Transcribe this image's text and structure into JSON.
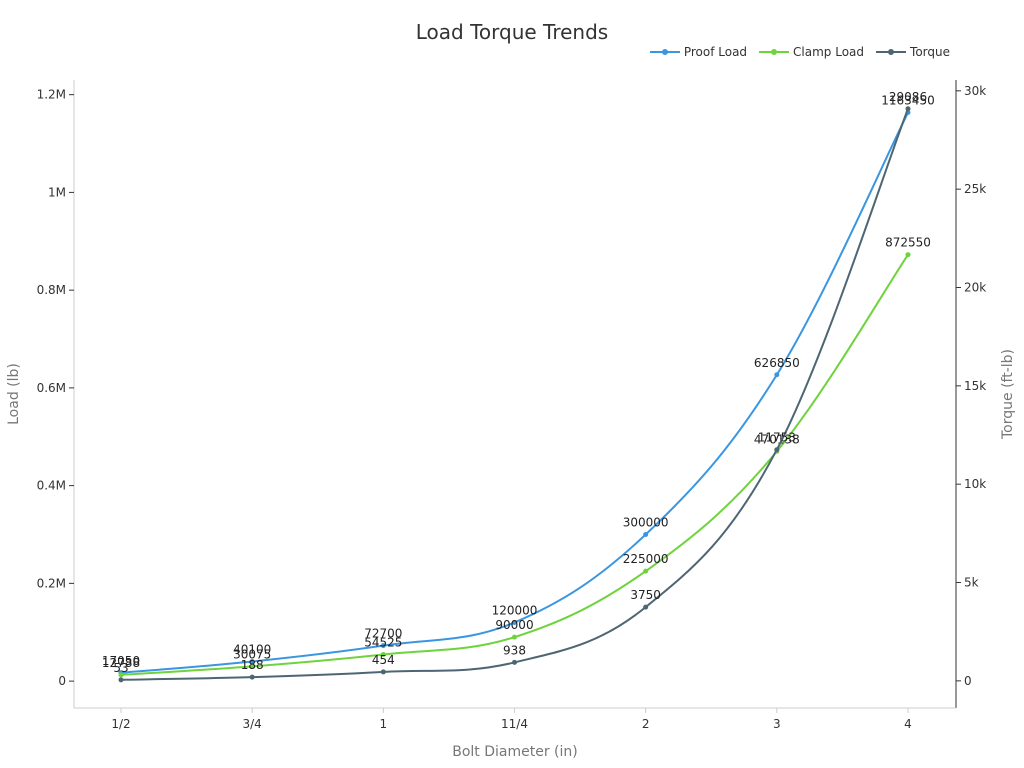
{
  "chart_data": {
    "type": "line",
    "title": "Load Torque Trends",
    "xlabel": "Bolt Diameter (in)",
    "ylabel_left": "Load (lb)",
    "ylabel_right": "Torque (ft-lb)",
    "categories": [
      "1/2",
      "3/4",
      "1",
      "11/4",
      "2",
      "3",
      "4"
    ],
    "ylim_left": [
      -55000,
      1230000
    ],
    "ylim_right": [
      -1380,
      30550
    ],
    "yticks_left": [
      0,
      200000,
      400000,
      600000,
      800000,
      1000000,
      1200000
    ],
    "ytick_labels_left": [
      "0",
      "0.2M",
      "0.4M",
      "0.6M",
      "0.8M",
      "1M",
      "1.2M"
    ],
    "yticks_right": [
      0,
      5000,
      10000,
      15000,
      20000,
      25000,
      30000
    ],
    "ytick_labels_right": [
      "0",
      "5k",
      "10k",
      "15k",
      "20k",
      "25k",
      "30k"
    ],
    "grid": false,
    "legend_position": "top-right",
    "series": [
      {
        "name": "Proof Load",
        "axis": "left",
        "color": "#3a96e0",
        "values": [
          17050,
          40100,
          72700,
          120000,
          300000,
          626850,
          1163450
        ]
      },
      {
        "name": "Clamp Load",
        "axis": "left",
        "color": "#6ed33c",
        "values": [
          12788,
          30075,
          54525,
          90000,
          225000,
          470138,
          872550
        ]
      },
      {
        "name": "Torque",
        "axis": "right",
        "color": "#4e6673",
        "values": [
          53,
          188,
          454,
          938,
          3750,
          11753,
          29086
        ]
      }
    ]
  }
}
